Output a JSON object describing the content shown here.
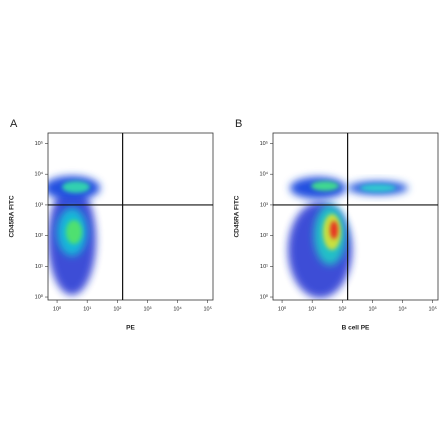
{
  "chart_data": [
    {
      "type": "scatter",
      "panel": "A",
      "xlabel": "PE",
      "ylabel": "CD45RA FITC",
      "log_x": true,
      "log_y": true,
      "xlim": [
        0.5,
        150000
      ],
      "ylim": [
        0.8,
        220000
      ],
      "xticks": [
        {
          "value": 1,
          "label": "10⁰"
        },
        {
          "value": 10,
          "label": "10¹"
        },
        {
          "value": 100,
          "label": "10²"
        },
        {
          "value": 1000,
          "label": "10³"
        },
        {
          "value": 10000,
          "label": "10⁴"
        },
        {
          "value": 100000,
          "label": "10⁵"
        }
      ],
      "yticks": [
        {
          "value": 1,
          "label": "10⁰"
        },
        {
          "value": 10,
          "label": "10¹"
        },
        {
          "value": 100,
          "label": "10²"
        },
        {
          "value": 1000,
          "label": "10³"
        },
        {
          "value": 10000,
          "label": "10⁴"
        },
        {
          "value": 100000,
          "label": "10⁵"
        }
      ],
      "gate_x": 150,
      "gate_y": 1000
    },
    {
      "type": "scatter",
      "panel": "B",
      "xlabel": "B cell PE",
      "ylabel": "CD45RA FITC",
      "log_x": true,
      "log_y": true,
      "xlim": [
        0.5,
        150000
      ],
      "ylim": [
        0.8,
        220000
      ],
      "xticks": [
        {
          "value": 1,
          "label": "10⁰"
        },
        {
          "value": 10,
          "label": "10¹"
        },
        {
          "value": 100,
          "label": "10²"
        },
        {
          "value": 1000,
          "label": "10³"
        },
        {
          "value": 10000,
          "label": "10⁴"
        },
        {
          "value": 100000,
          "label": "10⁵"
        }
      ],
      "yticks": [
        {
          "value": 1,
          "label": "10⁰"
        },
        {
          "value": 10,
          "label": "10¹"
        },
        {
          "value": 100,
          "label": "10²"
        },
        {
          "value": 1000,
          "label": "10³"
        },
        {
          "value": 10000,
          "label": "10⁴"
        },
        {
          "value": 100000,
          "label": "10⁵"
        }
      ],
      "gate_x": 150,
      "gate_y": 1000
    }
  ]
}
